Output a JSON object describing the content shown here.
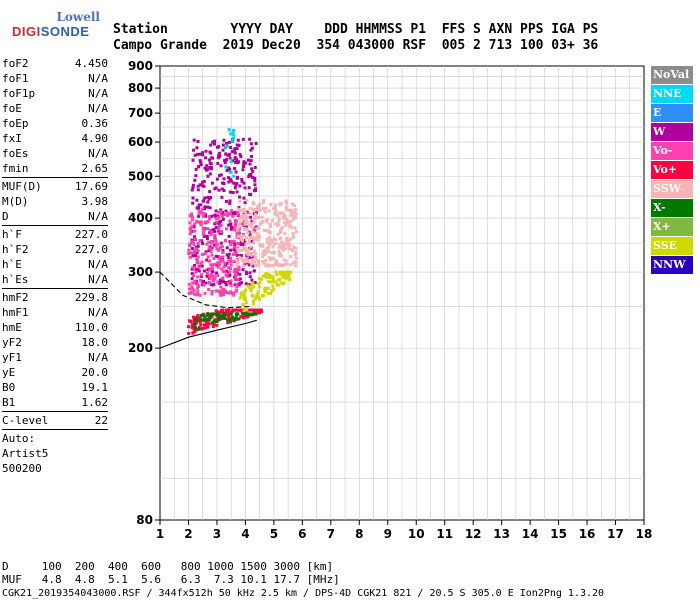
{
  "logo": {
    "line1": "Lowell",
    "line2a": "DIGI",
    "line2b": "SONDE"
  },
  "header": {
    "line1": "Station        YYYY DAY    DDD HHMMSS P1  FFS S AXN PPS IGA PS",
    "line2": "Campo Grande  2019 Dec20  354 043000 RSF  005 2 713 100 03+ 36"
  },
  "params": [
    {
      "k": "foF2",
      "v": "4.450"
    },
    {
      "k": "foF1",
      "v": "N/A"
    },
    {
      "k": "foF1p",
      "v": "N/A"
    },
    {
      "k": "foE",
      "v": "N/A"
    },
    {
      "k": "foEp",
      "v": "0.36"
    },
    {
      "k": "fxI",
      "v": "4.90"
    },
    {
      "k": "foEs",
      "v": "N/A"
    },
    {
      "k": "fmin",
      "v": "2.65"
    },
    {
      "k": "MUF(D)",
      "v": "17.69"
    },
    {
      "k": "M(D)",
      "v": "3.98"
    },
    {
      "k": "D",
      "v": "N/A"
    },
    {
      "k": "h`F",
      "v": "227.0"
    },
    {
      "k": "h`F2",
      "v": "227.0"
    },
    {
      "k": "h`E",
      "v": "N/A"
    },
    {
      "k": "h`Es",
      "v": "N/A"
    },
    {
      "k": "hmF2",
      "v": "229.8"
    },
    {
      "k": "hmF1",
      "v": "N/A"
    },
    {
      "k": "hmE",
      "v": "110.0"
    },
    {
      "k": "yF2",
      "v": "18.0"
    },
    {
      "k": "yF1",
      "v": "N/A"
    },
    {
      "k": "yE",
      "v": "20.0"
    },
    {
      "k": "B0",
      "v": "19.1"
    },
    {
      "k": "B1",
      "v": "1.62"
    },
    {
      "k": "C-level",
      "v": "22"
    }
  ],
  "meta": {
    "auto": "Auto:",
    "artist": "Artist5",
    "code": "500200"
  },
  "bottom": {
    "d_row": "D     100  200  400  600   800 1000 1500 3000 [km]",
    "muf_row": "MUF   4.8  4.8  5.1  5.6   6.3  7.3 10.1 17.7 [MHz]",
    "footer": "CGK21_2019354043000.RSF / 344fx512h 50 kHz 2.5 km / DPS-4D CGK21 821 / 20.5 S 305.0 E Ion2Png 1.3.20"
  },
  "legend": [
    {
      "label": "NoVal",
      "color": "#8c8c8c"
    },
    {
      "label": "NNE",
      "color": "#00d8f8"
    },
    {
      "label": "E",
      "color": "#2f8ff8"
    },
    {
      "label": "W",
      "color": "#b0009c"
    },
    {
      "label": "Vo-",
      "color": "#ff40b0"
    },
    {
      "label": "Vo+",
      "color": "#ff0040"
    },
    {
      "label": "SSW",
      "color": "#f8b4b4"
    },
    {
      "label": "X-",
      "color": "#007800"
    },
    {
      "label": "X+",
      "color": "#80b840"
    },
    {
      "label": "SSE",
      "color": "#d0d800"
    },
    {
      "label": "NNW",
      "color": "#2a00c0"
    }
  ],
  "chart_data": {
    "type": "scatter",
    "title": "",
    "xlabel": "",
    "ylabel": "",
    "xlim": [
      1,
      18
    ],
    "ylim": [
      80,
      900
    ],
    "xticks": [
      1,
      2,
      3,
      4,
      5,
      6,
      7,
      8,
      9,
      10,
      11,
      12,
      13,
      14,
      15,
      16,
      17,
      18
    ],
    "yticks": [
      80,
      200,
      300,
      400,
      500,
      600,
      700,
      800,
      900
    ],
    "grid": true,
    "scale": "log-y",
    "legend_position": "right",
    "clusters": [
      {
        "name": "W",
        "color": "#b0009c",
        "xmin": 2.1,
        "xmax": 4.4,
        "ymin": 280,
        "ymax": 610
      },
      {
        "name": "Vo-",
        "color": "#ff40b0",
        "xmin": 2.0,
        "xmax": 3.8,
        "ymin": 265,
        "ymax": 420
      },
      {
        "name": "SSW",
        "color": "#f8b4b4",
        "xmin": 3.7,
        "xmax": 5.8,
        "ymin": 310,
        "ymax": 440
      },
      {
        "name": "Vo+",
        "color": "#ff0040",
        "xmin": 2.0,
        "xmax": 4.6,
        "ymin": 215,
        "ymax": 245
      },
      {
        "name": "SSE",
        "color": "#d0d800",
        "xmin": 3.8,
        "xmax": 5.6,
        "ymin": 235,
        "ymax": 300
      },
      {
        "name": "X-",
        "color": "#007800",
        "xmin": 2.2,
        "xmax": 4.4,
        "ymin": 215,
        "ymax": 240
      },
      {
        "name": "NNE",
        "color": "#00d8f8",
        "xmin": 3.3,
        "xmax": 3.6,
        "ymin": 500,
        "ymax": 650
      }
    ],
    "profile_lines": [
      {
        "name": "o-trace",
        "points": [
          [
            1.0,
            200
          ],
          [
            2.0,
            212
          ],
          [
            3.0,
            220
          ],
          [
            4.0,
            228
          ],
          [
            4.4,
            232
          ]
        ]
      },
      {
        "name": "dashed",
        "points": [
          [
            1.0,
            300
          ],
          [
            1.8,
            265
          ],
          [
            2.6,
            252
          ],
          [
            3.4,
            248
          ],
          [
            4.2,
            250
          ]
        ]
      }
    ]
  }
}
